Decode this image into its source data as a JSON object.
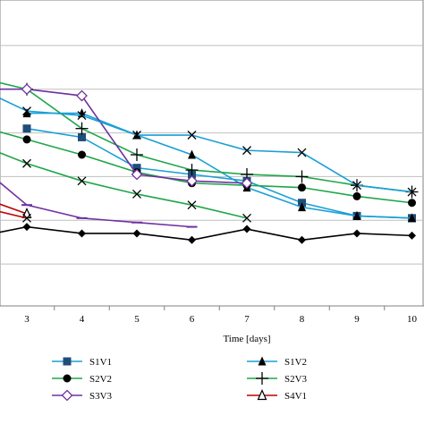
{
  "chart_data": {
    "type": "line",
    "xlabel": "Time [days]",
    "x_ticks": [
      3,
      4,
      5,
      6,
      7,
      8,
      9,
      10
    ],
    "xlim": [
      2,
      10.2
    ],
    "ylim": [
      0,
      7
    ],
    "grid": "horizontal",
    "legend_position": "bottom",
    "series": [
      {
        "name": "S1V1",
        "color": "#1f4e79",
        "marker": "square-filled",
        "line_color": "#1a9fd6",
        "x": [
          3,
          4,
          5,
          6,
          7,
          8,
          9,
          10
        ],
        "y": [
          4.1,
          3.9,
          3.2,
          3.05,
          2.9,
          2.4,
          2.1,
          2.05
        ]
      },
      {
        "name": "S1V2",
        "color": "#000000",
        "marker": "triangle-filled",
        "line_color": "#1a9fd6",
        "x": [
          3,
          4,
          5,
          6,
          7,
          8,
          9,
          10
        ],
        "y": [
          4.45,
          4.45,
          3.95,
          3.5,
          2.75,
          2.3,
          2.1,
          2.05
        ]
      },
      {
        "name": "S2V2",
        "color": "#000000",
        "marker": "circle-filled",
        "line_color": "#1fa64a",
        "x": [
          2,
          3,
          4,
          5,
          6,
          7,
          8,
          9,
          10
        ],
        "y": [
          4.2,
          3.85,
          3.5,
          3.1,
          2.85,
          2.8,
          2.75,
          2.55,
          2.4
        ]
      },
      {
        "name": "S2V3",
        "color": "#000000",
        "marker": "plus",
        "line_color": "#1fa64a",
        "x": [
          2,
          3,
          4,
          5,
          6,
          7,
          8,
          9,
          10
        ],
        "y": [
          5.3,
          5.0,
          4.1,
          3.5,
          3.15,
          3.05,
          3.0,
          2.8,
          2.65
        ]
      },
      {
        "name": "S3V3",
        "color": "#7030a0",
        "marker": "diamond-open",
        "line_color": "#7030a0",
        "x": [
          2,
          3,
          4,
          5,
          6,
          7
        ],
        "y": [
          5.0,
          5.0,
          4.85,
          3.05,
          2.9,
          2.85
        ]
      },
      {
        "name": "S4V1",
        "color": "#000000",
        "marker": "triangle-open",
        "line_color": "#c00000",
        "x": [
          2,
          3
        ],
        "y": [
          2.6,
          2.15
        ]
      },
      {
        "name": "",
        "color": "#000000",
        "marker": "x",
        "line_color": "#1a9fd6",
        "x": [
          2,
          3,
          4,
          5,
          6,
          7,
          8,
          9,
          10
        ],
        "y": [
          5.1,
          4.5,
          4.4,
          3.95,
          3.95,
          3.6,
          3.55,
          2.8,
          2.65
        ]
      },
      {
        "name": "",
        "color": "#000000",
        "marker": "x",
        "line_color": "#1fa64a",
        "x": [
          2,
          3,
          4,
          5,
          6,
          7
        ],
        "y": [
          3.8,
          3.3,
          2.9,
          2.6,
          2.35,
          2.05
        ]
      },
      {
        "name": "",
        "color": "#7030a0",
        "marker": "minus",
        "line_color": "#7030a0",
        "x": [
          2,
          3,
          4,
          5,
          6
        ],
        "y": [
          3.4,
          2.35,
          2.05,
          1.95,
          1.85
        ]
      },
      {
        "name": "",
        "color": "#000000",
        "marker": "diamond-filled",
        "line_color": "#000000",
        "x": [
          2,
          3,
          4,
          5,
          6,
          7,
          8,
          9,
          10
        ],
        "y": [
          1.6,
          1.85,
          1.7,
          1.7,
          1.55,
          1.8,
          1.55,
          1.7,
          1.65
        ]
      },
      {
        "name": "",
        "color": "#000000",
        "marker": "x",
        "line_color": "#c00000",
        "x": [
          2,
          3
        ],
        "y": [
          2.35,
          2.05
        ]
      }
    ]
  }
}
